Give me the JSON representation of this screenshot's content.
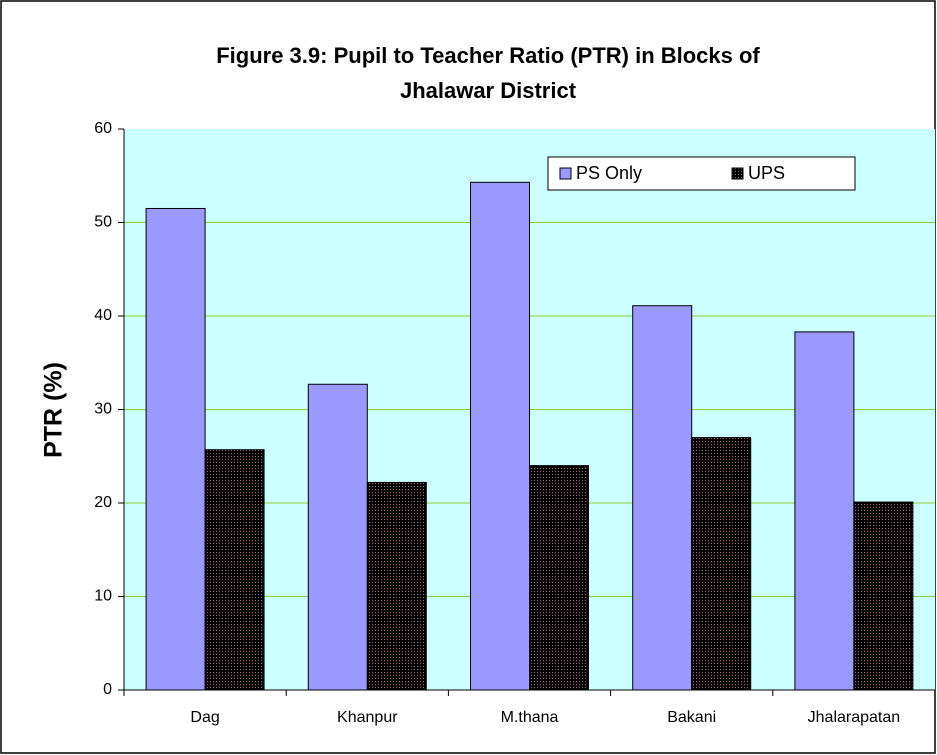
{
  "chart_data": {
    "type": "bar",
    "title": [
      "Figure 3.9: Pupil to Teacher Ratio (PTR) in Blocks of",
      "Jhalawar District"
    ],
    "y_label": "PTR (%)",
    "categories": [
      "Dag",
      "Khanpur",
      "M.thana",
      "Bakani",
      "Jhalarapatan"
    ],
    "series": [
      {
        "name": "PS Only",
        "color": "#9999ff",
        "values": [
          51.5,
          32.7,
          54.3,
          41.1,
          38.3
        ]
      },
      {
        "name": "UPS",
        "color": "#d4a0b4",
        "values": [
          25.7,
          22.2,
          24.0,
          27.0,
          20.1
        ]
      }
    ],
    "ylim": [
      0,
      60
    ],
    "yticks": [
      0,
      10,
      20,
      30,
      40,
      50,
      60
    ],
    "grid": true,
    "legend": "upper right",
    "plot_background": "#ccffff"
  }
}
